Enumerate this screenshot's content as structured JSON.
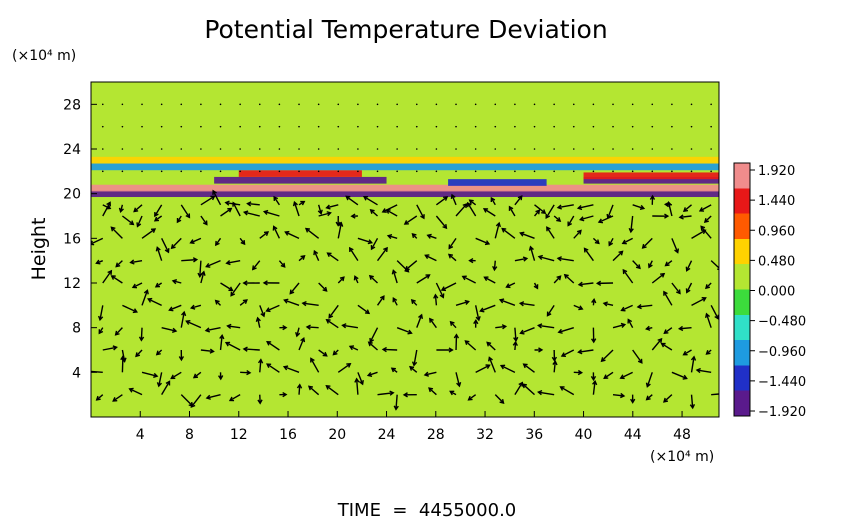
{
  "chart_data": {
    "type": "heatmap",
    "title": "Potential Temperature Deviation",
    "ylabel": "Height",
    "y_unit_label": "(×10⁴ m)",
    "x_unit_label": "(×10⁴ m)",
    "xlim": [
      0,
      51
    ],
    "ylim": [
      0,
      30
    ],
    "x_ticks": [
      4,
      8,
      12,
      16,
      20,
      24,
      28,
      32,
      36,
      40,
      44,
      48
    ],
    "y_ticks": [
      4,
      8,
      12,
      16,
      20,
      24,
      28
    ],
    "colorbar": {
      "ticks": [
        "1.920",
        "1.440",
        "0.960",
        "0.480",
        "0.000",
        "−0.480",
        "−0.960",
        "−1.440",
        "−1.920"
      ],
      "range": [
        -1.92,
        1.92
      ],
      "colors": [
        "#5a1a8c",
        "#2030c8",
        "#1e9be0",
        "#30e0c8",
        "#3cdc3c",
        "#b4e632",
        "#ffd200",
        "#ff5a00",
        "#e81818",
        "#f08c8c"
      ]
    },
    "background_value": 0.0,
    "bands": [
      {
        "y": 20.0,
        "x_from": 0,
        "x_to": 51,
        "value": -1.92
      },
      {
        "y": 20.5,
        "x_from": 0,
        "x_to": 51,
        "value": 1.92
      },
      {
        "y": 21.2,
        "x_from": 10,
        "x_to": 24,
        "value": -1.92
      },
      {
        "y": 21.8,
        "x_from": 12,
        "x_to": 22,
        "value": 1.44
      },
      {
        "y": 21.0,
        "x_from": 29,
        "x_to": 37,
        "value": -1.44
      },
      {
        "y": 21.2,
        "x_from": 40,
        "x_to": 51,
        "value": -1.92
      },
      {
        "y": 21.6,
        "x_from": 40,
        "x_to": 51,
        "value": 1.44
      },
      {
        "y": 22.4,
        "x_from": 0,
        "x_to": 51,
        "value": -0.96
      },
      {
        "y": 23.0,
        "x_from": 0,
        "x_to": 51,
        "value": 0.48
      }
    ],
    "wind_field_rows": [
      2,
      4,
      6,
      8,
      10,
      12,
      14,
      16,
      18,
      19
    ]
  },
  "footer": {
    "time_text": "TIME  =  4455000.0"
  }
}
